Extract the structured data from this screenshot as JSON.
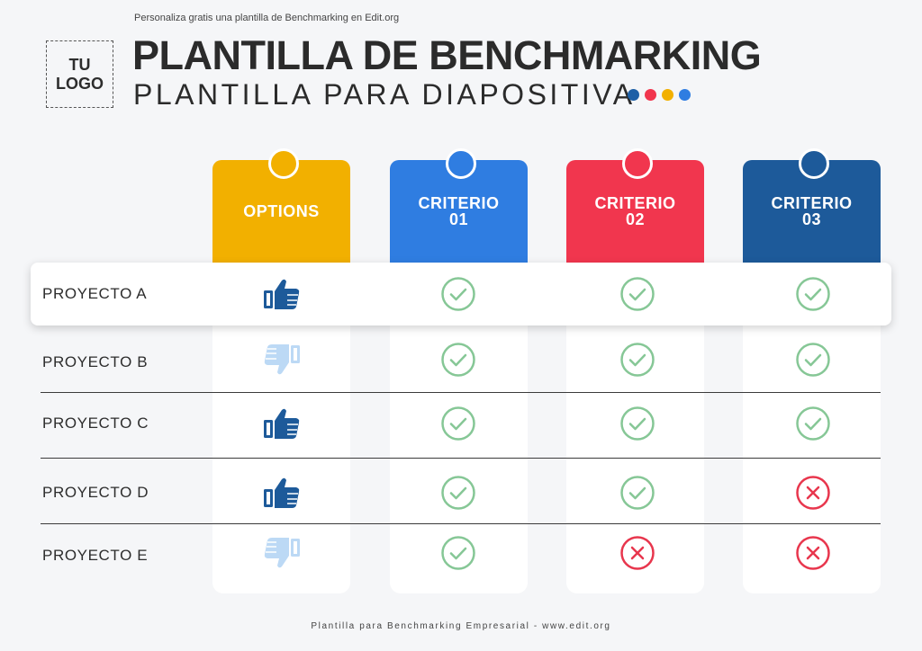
{
  "header": {
    "tagline": "Personaliza gratis una plantilla de Benchmarking en Edit.org",
    "logo_line1": "TU",
    "logo_line2": "LOGO",
    "title": "PLANTILLA DE BENCHMARKING",
    "subtitle": "PLANTILLA PARA DIAPOSITIVA",
    "dot_colors": [
      "#1d5fa6",
      "#f1364e",
      "#f2b000",
      "#2f7de1"
    ]
  },
  "columns": [
    {
      "line1": "OPTIONS",
      "line2": "",
      "color": "#f2b000"
    },
    {
      "line1": "CRITERIO",
      "line2": "01",
      "color": "#2f7de1"
    },
    {
      "line1": "CRITERIO",
      "line2": "02",
      "color": "#f1364e"
    },
    {
      "line1": "CRITERIO",
      "line2": "03",
      "color": "#1d5a9a"
    }
  ],
  "rows": [
    {
      "label": "PROYECTO A",
      "option": "thumbs-up",
      "criteria": [
        "check",
        "check",
        "check"
      ]
    },
    {
      "label": "PROYECTO B",
      "option": "thumbs-down",
      "criteria": [
        "check",
        "check",
        "check"
      ]
    },
    {
      "label": "PROYECTO C",
      "option": "thumbs-up",
      "criteria": [
        "check",
        "check",
        "check"
      ]
    },
    {
      "label": "PROYECTO D",
      "option": "thumbs-up",
      "criteria": [
        "check",
        "check",
        "cross"
      ]
    },
    {
      "label": "PROYECTO E",
      "option": "thumbs-down",
      "criteria": [
        "check",
        "cross",
        "cross"
      ]
    }
  ],
  "colors": {
    "check": "#86c796",
    "cross": "#e8364d",
    "thumb_up": "#1d5a9a",
    "thumb_down": "#bcd9f5"
  },
  "footer": "Plantilla para Benchmarking Empresarial - www.edit.org"
}
